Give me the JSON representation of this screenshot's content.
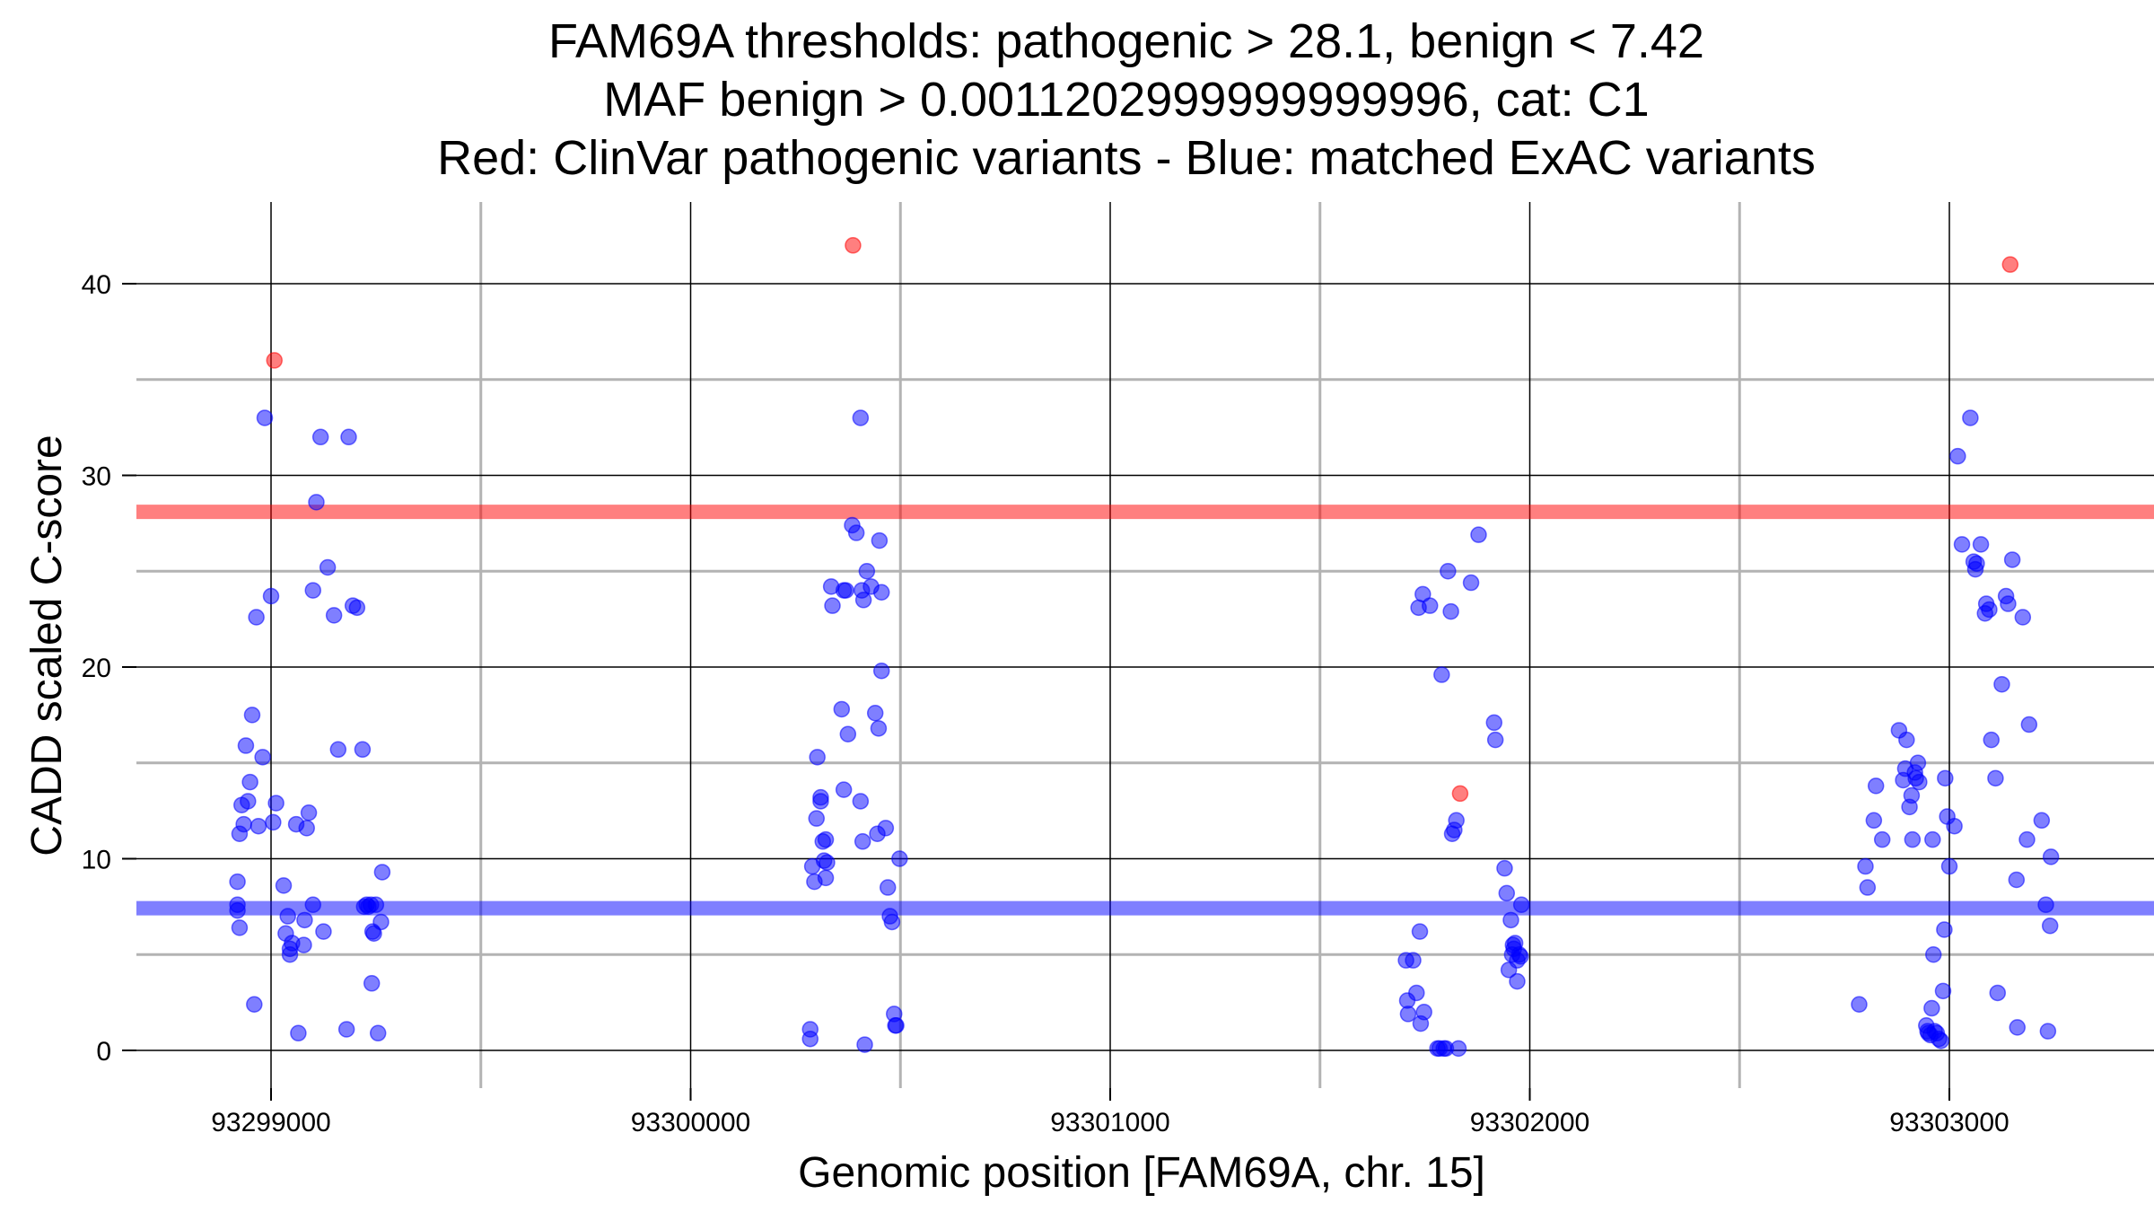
{
  "chart_data": {
    "type": "scatter",
    "title_lines": [
      "FAM69A thresholds: pathogenic > 28.1, benign < 7.42",
      "MAF benign > 0.0011202999999999996, cat: C1",
      "Red: ClinVar pathogenic variants - Blue: matched ExAC variants"
    ],
    "xlabel": "Genomic position [FAM69A, chr. 15]",
    "ylabel": "CADD scaled C-score",
    "xlim": [
      93298680,
      93303520
    ],
    "ylim": [
      -2,
      44
    ],
    "x_ticks": [
      93299000,
      93300000,
      93301000,
      93302000,
      93303000
    ],
    "x_minor": [
      93299500,
      93300500,
      93301500,
      93302500
    ],
    "y_ticks": [
      0,
      10,
      20,
      30,
      40
    ],
    "y_minor": [
      5,
      15,
      25,
      35
    ],
    "thresholds": {
      "pathogenic": 28.1,
      "benign": 7.42,
      "pathogenic_color": "#ff0000",
      "benign_color": "#0000ff"
    },
    "colors": {
      "pathogenic": "#ff0000",
      "benign": "#0000ff",
      "major_grid": "#000000",
      "minor_grid": "#b3b3b3"
    },
    "series": [
      {
        "name": "ClinVar pathogenic variants",
        "color": "#ff0000",
        "points": [
          [
            93299008,
            36.0
          ],
          [
            93300387,
            42.0
          ],
          [
            93301834,
            13.4
          ],
          [
            93303145,
            41.0
          ]
        ]
      },
      {
        "name": "Matched ExAC variants",
        "color": "#0000ff",
        "points": [
          [
            93298920,
            8.8
          ],
          [
            93298920,
            7.6
          ],
          [
            93298920,
            7.3
          ],
          [
            93298925,
            6.4
          ],
          [
            93298925,
            11.3
          ],
          [
            93298930,
            12.8
          ],
          [
            93298935,
            11.8
          ],
          [
            93298940,
            15.9
          ],
          [
            93298945,
            13.0
          ],
          [
            93298950,
            14.0
          ],
          [
            93298955,
            17.5
          ],
          [
            93298960,
            2.4
          ],
          [
            93298965,
            22.6
          ],
          [
            93298970,
            11.7
          ],
          [
            93298980,
            15.3
          ],
          [
            93298985,
            33.0
          ],
          [
            93299000,
            23.7
          ],
          [
            93299005,
            11.9
          ],
          [
            93299012,
            12.9
          ],
          [
            93299030,
            8.6
          ],
          [
            93299035,
            6.1
          ],
          [
            93299040,
            7.0
          ],
          [
            93299045,
            5.0
          ],
          [
            93299045,
            5.3
          ],
          [
            93299050,
            5.6
          ],
          [
            93299060,
            11.8
          ],
          [
            93299065,
            0.9
          ],
          [
            93299078,
            5.5
          ],
          [
            93299080,
            6.8
          ],
          [
            93299085,
            11.6
          ],
          [
            93299090,
            12.4
          ],
          [
            93299100,
            7.6
          ],
          [
            93299100,
            24.0
          ],
          [
            93299108,
            28.6
          ],
          [
            93299118,
            32.0
          ],
          [
            93299125,
            6.2
          ],
          [
            93299135,
            25.2
          ],
          [
            93299150,
            22.7
          ],
          [
            93299160,
            15.7
          ],
          [
            93299180,
            1.1
          ],
          [
            93299185,
            32.0
          ],
          [
            93299195,
            23.2
          ],
          [
            93299205,
            23.1
          ],
          [
            93299218,
            15.7
          ],
          [
            93299222,
            7.5
          ],
          [
            93299228,
            7.6
          ],
          [
            93299232,
            7.5
          ],
          [
            93299238,
            7.6
          ],
          [
            93299240,
            3.5
          ],
          [
            93299242,
            6.2
          ],
          [
            93299245,
            6.1
          ],
          [
            93299250,
            7.6
          ],
          [
            93299255,
            0.9
          ],
          [
            93299262,
            6.7
          ],
          [
            93299265,
            9.3
          ],
          [
            93300285,
            1.1
          ],
          [
            93300285,
            0.6
          ],
          [
            93300290,
            9.6
          ],
          [
            93300295,
            8.8
          ],
          [
            93300300,
            12.1
          ],
          [
            93300302,
            15.3
          ],
          [
            93300310,
            13.2
          ],
          [
            93300310,
            13.0
          ],
          [
            93300315,
            10.9
          ],
          [
            93300318,
            9.9
          ],
          [
            93300322,
            11.0
          ],
          [
            93300322,
            9.0
          ],
          [
            93300325,
            9.8
          ],
          [
            93300335,
            24.2
          ],
          [
            93300338,
            23.2
          ],
          [
            93300360,
            17.8
          ],
          [
            93300365,
            24.0
          ],
          [
            93300365,
            13.6
          ],
          [
            93300370,
            24.0
          ],
          [
            93300375,
            16.5
          ],
          [
            93300385,
            27.4
          ],
          [
            93300395,
            27.0
          ],
          [
            93300405,
            13.0
          ],
          [
            93300405,
            33.0
          ],
          [
            93300408,
            24.0
          ],
          [
            93300410,
            10.9
          ],
          [
            93300412,
            23.5
          ],
          [
            93300415,
            0.3
          ],
          [
            93300420,
            25.0
          ],
          [
            93300430,
            24.2
          ],
          [
            93300440,
            17.6
          ],
          [
            93300445,
            11.3
          ],
          [
            93300448,
            16.8
          ],
          [
            93300450,
            26.6
          ],
          [
            93300455,
            19.8
          ],
          [
            93300455,
            23.9
          ],
          [
            93300465,
            11.6
          ],
          [
            93300470,
            8.5
          ],
          [
            93300475,
            7.0
          ],
          [
            93300480,
            6.7
          ],
          [
            93300485,
            1.9
          ],
          [
            93300488,
            1.3
          ],
          [
            93300490,
            1.3
          ],
          [
            93300498,
            10.0
          ],
          [
            93301705,
            4.7
          ],
          [
            93301708,
            2.6
          ],
          [
            93301710,
            1.9
          ],
          [
            93301722,
            4.7
          ],
          [
            93301730,
            3.0
          ],
          [
            93301735,
            23.1
          ],
          [
            93301738,
            6.2
          ],
          [
            93301740,
            1.4
          ],
          [
            93301745,
            23.8
          ],
          [
            93301748,
            2.0
          ],
          [
            93301762,
            23.2
          ],
          [
            93301780,
            0.1
          ],
          [
            93301785,
            0.1
          ],
          [
            93301790,
            19.6
          ],
          [
            93301795,
            0.1
          ],
          [
            93301800,
            0.1
          ],
          [
            93301805,
            25.0
          ],
          [
            93301812,
            22.9
          ],
          [
            93301815,
            11.3
          ],
          [
            93301820,
            11.5
          ],
          [
            93301825,
            12.0
          ],
          [
            93301830,
            0.1
          ],
          [
            93301860,
            24.4
          ],
          [
            93301878,
            26.9
          ],
          [
            93301915,
            17.1
          ],
          [
            93301918,
            16.2
          ],
          [
            93301940,
            9.5
          ],
          [
            93301945,
            8.2
          ],
          [
            93301950,
            4.2
          ],
          [
            93301955,
            6.8
          ],
          [
            93301958,
            5.0
          ],
          [
            93301960,
            5.5
          ],
          [
            93301962,
            5.3
          ],
          [
            93301965,
            5.6
          ],
          [
            93301970,
            3.6
          ],
          [
            93301970,
            4.7
          ],
          [
            93301975,
            5.0
          ],
          [
            93301978,
            4.9
          ],
          [
            93301980,
            7.6
          ],
          [
            93302785,
            2.4
          ],
          [
            93302800,
            9.6
          ],
          [
            93302805,
            8.5
          ],
          [
            93302820,
            12.0
          ],
          [
            93302825,
            13.8
          ],
          [
            93302840,
            11.0
          ],
          [
            93302880,
            16.7
          ],
          [
            93302890,
            14.1
          ],
          [
            93302895,
            14.7
          ],
          [
            93302898,
            16.2
          ],
          [
            93302905,
            12.7
          ],
          [
            93302910,
            13.3
          ],
          [
            93302912,
            11.0
          ],
          [
            93302918,
            14.5
          ],
          [
            93302920,
            14.2
          ],
          [
            93302925,
            15.0
          ],
          [
            93302928,
            14.0
          ],
          [
            93302945,
            1.3
          ],
          [
            93302948,
            1.0
          ],
          [
            93302950,
            0.9
          ],
          [
            93302955,
            0.8
          ],
          [
            93302958,
            2.2
          ],
          [
            93302960,
            11.0
          ],
          [
            93302962,
            5.0
          ],
          [
            93302965,
            1.0
          ],
          [
            93302970,
            0.9
          ],
          [
            93302975,
            0.6
          ],
          [
            93302980,
            0.5
          ],
          [
            93302985,
            3.1
          ],
          [
            93302988,
            6.3
          ],
          [
            93302990,
            14.2
          ],
          [
            93302995,
            12.2
          ],
          [
            93303000,
            9.6
          ],
          [
            93303012,
            11.7
          ],
          [
            93303020,
            31.0
          ],
          [
            93303030,
            26.4
          ],
          [
            93303050,
            33.0
          ],
          [
            93303058,
            25.5
          ],
          [
            93303062,
            25.1
          ],
          [
            93303065,
            25.4
          ],
          [
            93303075,
            26.4
          ],
          [
            93303085,
            22.8
          ],
          [
            93303088,
            23.3
          ],
          [
            93303095,
            23.0
          ],
          [
            93303100,
            16.2
          ],
          [
            93303110,
            14.2
          ],
          [
            93303115,
            3.0
          ],
          [
            93303125,
            19.1
          ],
          [
            93303135,
            23.7
          ],
          [
            93303140,
            23.3
          ],
          [
            93303150,
            25.6
          ],
          [
            93303160,
            8.9
          ],
          [
            93303162,
            1.2
          ],
          [
            93303175,
            22.6
          ],
          [
            93303185,
            11.0
          ],
          [
            93303190,
            17.0
          ],
          [
            93303220,
            12.0
          ],
          [
            93303230,
            7.6
          ],
          [
            93303235,
            1.0
          ],
          [
            93303240,
            6.5
          ],
          [
            93303242,
            10.1
          ]
        ]
      }
    ]
  }
}
